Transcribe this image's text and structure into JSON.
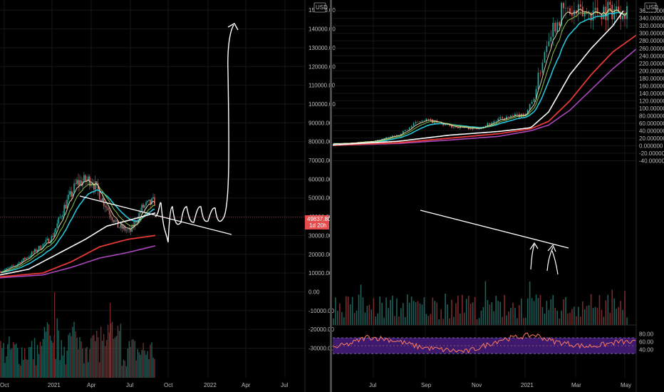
{
  "currency_label": "USD",
  "colors": {
    "background": "#000000",
    "grid": "#161616",
    "divider": "#5a5a5a",
    "axis_text": "#bdbdbd",
    "candle_up": "#26a69a",
    "candle_down": "#ef5350",
    "ema_short": "#f5deb3",
    "ema_mid": "#8bc34a",
    "ema_long": "#26c6da",
    "ma_white": "#ffffff",
    "ma_red": "#e53935",
    "ma_purple": "#ab47bc",
    "rsi_band": "#3d1a6e",
    "rsi_line": "#ff7a5c",
    "price_badge": "#e54b4b"
  },
  "chart_data": [
    {
      "type": "candlestick",
      "panel": "left",
      "x_tick_labels": [
        "Oct",
        "2021",
        "Apr",
        "Jul",
        "Oct",
        "2022",
        "Apr",
        "Jul"
      ],
      "y_tick_labels": [
        "150000.00",
        "140000.00",
        "130000.00",
        "120000.00",
        "110000.00",
        "100000.00",
        "90000.00",
        "80000.00",
        "70000.00",
        "60000.00",
        "50000.00",
        "40000.00",
        "30000.00",
        "20000.00",
        "10000.00",
        "0.00",
        "-10000.00",
        "-20000.00",
        "-30000.00"
      ],
      "ylim": [
        -35000,
        162000
      ],
      "last_price_label": "49837.80",
      "countdown_label": "1d 20h",
      "price_path": [
        [
          "Oct",
          10800
        ],
        [
          "Nov",
          13800
        ],
        [
          "Dec",
          19500
        ],
        [
          "2021",
          29000
        ],
        [
          "Feb",
          45000
        ],
        [
          "Mar",
          58000
        ],
        [
          "Apr",
          60000
        ],
        [
          "May",
          45000
        ],
        [
          "Jun",
          35000
        ],
        [
          "Jul",
          32000
        ],
        [
          "Aug",
          45000
        ],
        [
          "Sep",
          48000
        ]
      ],
      "moving_averages_end_values": {
        "white": 40000,
        "red": 30000,
        "purple": 25000
      },
      "projection_path": [
        [
          "Sep",
          49000
        ],
        [
          "Oct",
          44000
        ],
        [
          "Oct",
          56000
        ],
        [
          "Nov",
          44000
        ],
        [
          "Dec",
          50000
        ],
        [
          "Jan",
          45000
        ],
        [
          "2022",
          52000
        ],
        [
          "Feb",
          48000
        ],
        [
          "Feb",
          155000
        ]
      ],
      "drawn_trendline": [
        [
          "Feb 2021",
          63000
        ],
        [
          "Nov 2021",
          42000
        ]
      ]
    },
    {
      "type": "candlestick",
      "panel": "right",
      "x_tick_labels": [
        "Jul",
        "Sep",
        "Nov",
        "2021",
        "Mar",
        "May"
      ],
      "y_tick_labels": [
        "360.000000",
        "340.000000",
        "320.000000",
        "300.000000",
        "280.000000",
        "260.000000",
        "240.000000",
        "220.000000",
        "200.000000",
        "180.000000",
        "160.000000",
        "140.000000",
        "120.000000",
        "100.000000",
        "80.000000",
        "60.000000",
        "40.000000",
        "20.000000",
        "0.000000",
        "-20.000000",
        "-40.000000"
      ],
      "ylim": [
        -45,
        375
      ],
      "price_path": [
        [
          "Jun",
          5
        ],
        [
          "Jul",
          12
        ],
        [
          "Aug",
          30
        ],
        [
          "Sep",
          72
        ],
        [
          "Oct",
          52
        ],
        [
          "Nov",
          45
        ],
        [
          "Dec",
          80
        ],
        [
          "2021",
          120
        ],
        [
          "Feb",
          300
        ],
        [
          "Mar",
          360
        ],
        [
          "Apr",
          350
        ],
        [
          "May",
          365
        ]
      ],
      "moving_averages_end_values": {
        "white": 360,
        "red": 295,
        "purple": 258
      },
      "drawn_trendline": [
        [
          "Aug",
          95
        ],
        [
          "Jan",
          45
        ]
      ],
      "rsi": {
        "y_tick_labels": [
          "80.00",
          "60.00",
          "40.00"
        ],
        "band": [
          30,
          70
        ],
        "midline": 50,
        "values": [
          45,
          55,
          72,
          68,
          60,
          48,
          42,
          38,
          35,
          50,
          66,
          72,
          78,
          62,
          55,
          48,
          52,
          60,
          58
        ]
      }
    }
  ]
}
